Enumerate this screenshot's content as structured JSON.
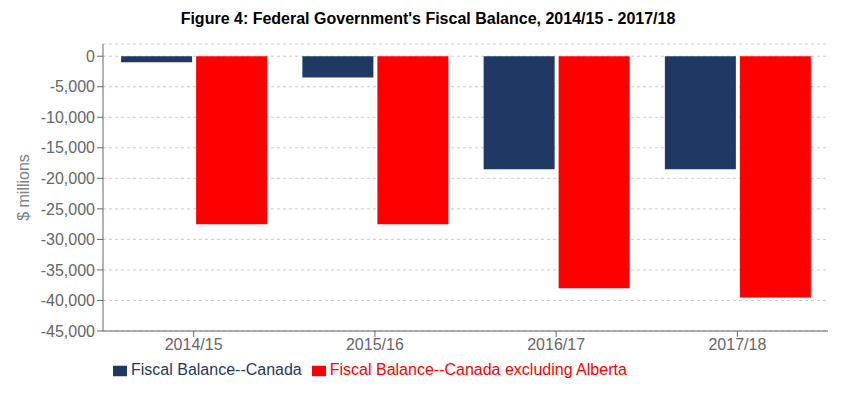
{
  "chart_data": {
    "type": "bar",
    "title": "Figure 4: Federal Government's Fiscal Balance, 2014/15 - 2017/18",
    "categories": [
      "2014/15",
      "2015/16",
      "2016/17",
      "2017/18"
    ],
    "series": [
      {
        "name": "Fiscal Balance--Canada",
        "color": "#1F3864",
        "values": [
          -1000,
          -3500,
          -18500,
          -18500
        ]
      },
      {
        "name": "Fiscal Balance--Canada excluding Alberta",
        "color": "#FF0000",
        "values": [
          -27500,
          -27500,
          -38000,
          -39500
        ]
      }
    ],
    "ylabel": "$ millions",
    "ylim": [
      -45000,
      2000
    ],
    "yticks": [
      0,
      {
        "value": -5000,
        "label": "-5,000"
      },
      {
        "value": -10000,
        "label": "-10,000"
      },
      {
        "value": -15000,
        "label": "-15,000"
      },
      {
        "value": -20000,
        "label": "-20,000"
      },
      {
        "value": -25000,
        "label": "-25,000"
      },
      {
        "value": -30000,
        "label": "-30,000"
      },
      {
        "value": -35000,
        "label": "-35,000"
      },
      {
        "value": -40000,
        "label": "-40,000"
      },
      {
        "value": -45000,
        "label": "-45,000"
      }
    ],
    "grid": true,
    "legend": "lower left"
  }
}
